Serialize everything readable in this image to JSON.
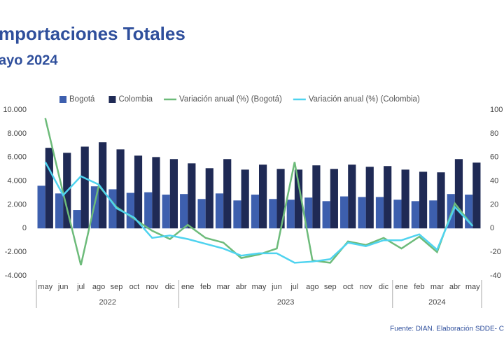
{
  "chart_data": {
    "type": "bar",
    "title": "mportaciones Totales",
    "subtitle": "ayo 2024",
    "source": "Fuente: DIAN. Elaboración SDDE- C",
    "categories": [
      "may",
      "jun",
      "jul",
      "ago",
      "sep",
      "oct",
      "nov",
      "dic",
      "ene",
      "feb",
      "mar",
      "abr",
      "may",
      "jun",
      "jul",
      "ago",
      "sep",
      "oct",
      "nov",
      "dic",
      "ene",
      "feb",
      "mar",
      "abr",
      "may"
    ],
    "groups": [
      {
        "name": "2022",
        "size": 8
      },
      {
        "name": "2023",
        "size": 12
      },
      {
        "name": "2024",
        "size": 5
      }
    ],
    "ylim": [
      -4000,
      10000
    ],
    "yticks": [
      {
        "value": -4000,
        "label": "-4.000"
      },
      {
        "value": -2000,
        "label": "-2.000"
      },
      0,
      {
        "value": 2000,
        "label": "2.000"
      },
      {
        "value": 4000,
        "label": "4.000"
      },
      {
        "value": 6000,
        "label": "6.000"
      },
      {
        "value": 8000,
        "label": "8.000"
      },
      {
        "value": 10000,
        "label": "10.000"
      }
    ],
    "y2lim": [
      -40,
      100
    ],
    "y2ticks": [
      -40,
      -20,
      0,
      20,
      40,
      60,
      80,
      100
    ],
    "grid": false,
    "series": [
      {
        "name": "Bogotá",
        "type": "bar",
        "color": "#3d5fae",
        "values": [
          3600,
          2950,
          1550,
          3550,
          3300,
          3000,
          3050,
          2850,
          2900,
          2480,
          2950,
          2360,
          2850,
          2480,
          2420,
          2600,
          2300,
          2700,
          2650,
          2650,
          2420,
          2300,
          2360,
          2900,
          2850
        ]
      },
      {
        "name": "Colombia",
        "type": "bar",
        "color": "#1f2a55",
        "values": [
          6800,
          6380,
          6900,
          7270,
          6670,
          6140,
          6020,
          5850,
          5490,
          5080,
          5850,
          4960,
          5380,
          5020,
          4960,
          5320,
          5020,
          5380,
          5200,
          5260,
          4960,
          4780,
          4730,
          5850,
          5550
        ]
      },
      {
        "name": "Variación anual (%) (Bogotá)",
        "type": "line",
        "axis": "y2",
        "color": "#6dbb7a",
        "values": [
          93,
          30,
          -31,
          36,
          18,
          8,
          -2,
          -9,
          3,
          -8,
          -12,
          -25,
          -22,
          -17,
          56,
          -27,
          -29,
          -11,
          -14,
          -8,
          -17,
          -7,
          -20,
          21,
          2
        ]
      },
      {
        "name": "Variación anual (%) (Colombia)",
        "type": "line",
        "axis": "y2",
        "color": "#4fd3ef",
        "values": [
          56,
          28,
          44,
          37,
          17,
          9,
          -8,
          -6,
          -9,
          -13,
          -17,
          -23,
          -21,
          -21,
          -29,
          -28,
          -26,
          -12,
          -15,
          -10,
          -10,
          -5,
          -18,
          18,
          2
        ]
      }
    ]
  }
}
